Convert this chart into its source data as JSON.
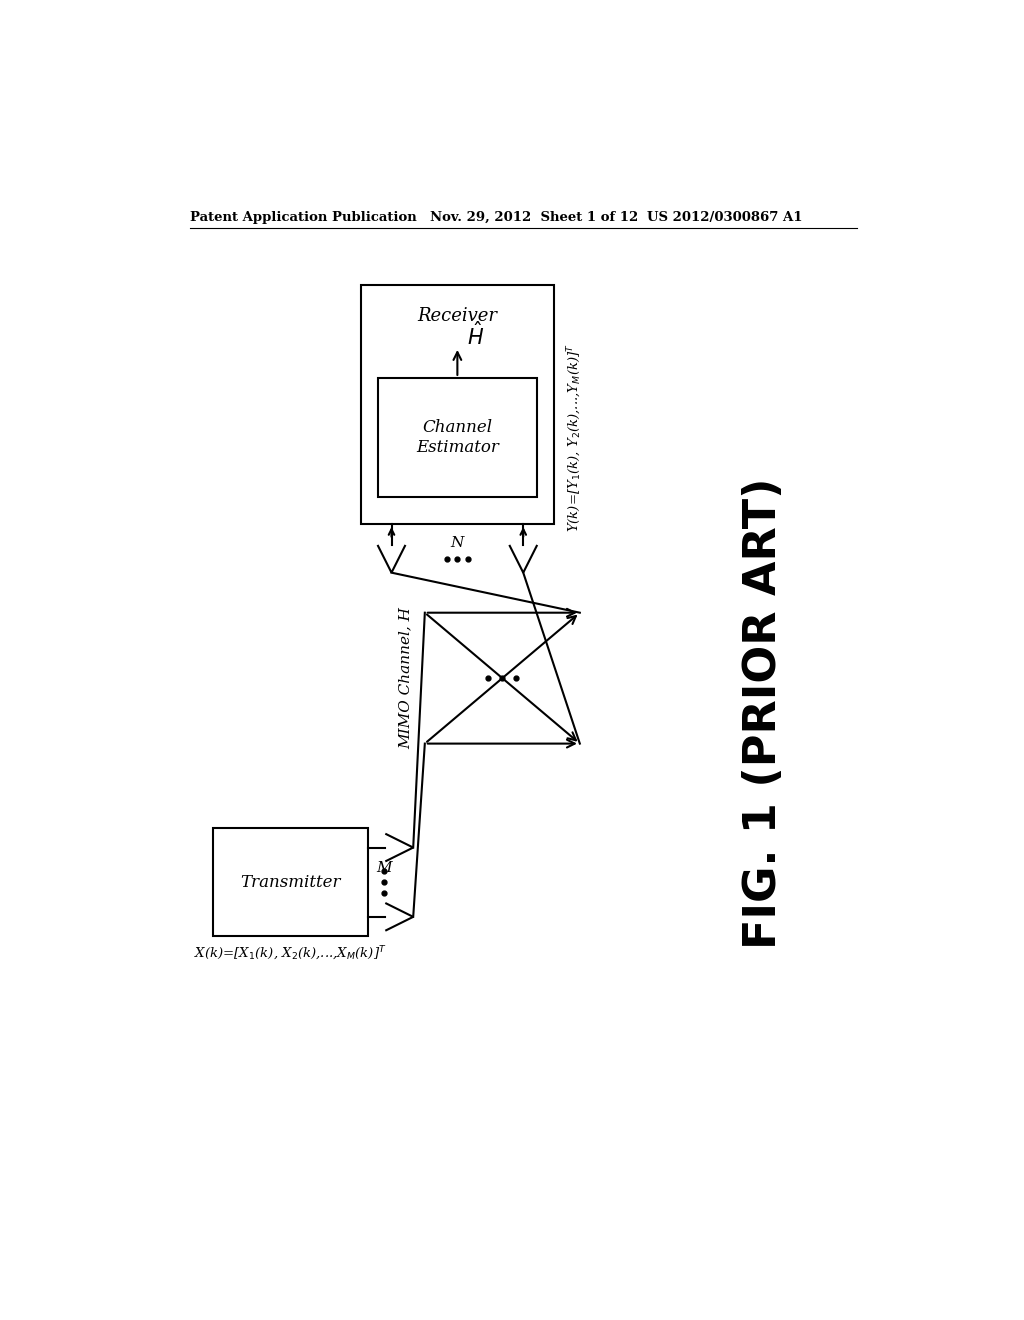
{
  "bg_color": "#ffffff",
  "header_left": "Patent Application Publication",
  "header_mid": "Nov. 29, 2012  Sheet 1 of 12",
  "header_right": "US 2012/0300867 A1",
  "fig_label": "FIG. 1 (PRIOR ART)",
  "transmitter_label": "Transmitter",
  "receiver_label": "Receiver",
  "channel_estimator_label": "Channel\nEstimator",
  "mimo_label": "MIMO Channel, H",
  "m_label": "M",
  "n_label": "N"
}
